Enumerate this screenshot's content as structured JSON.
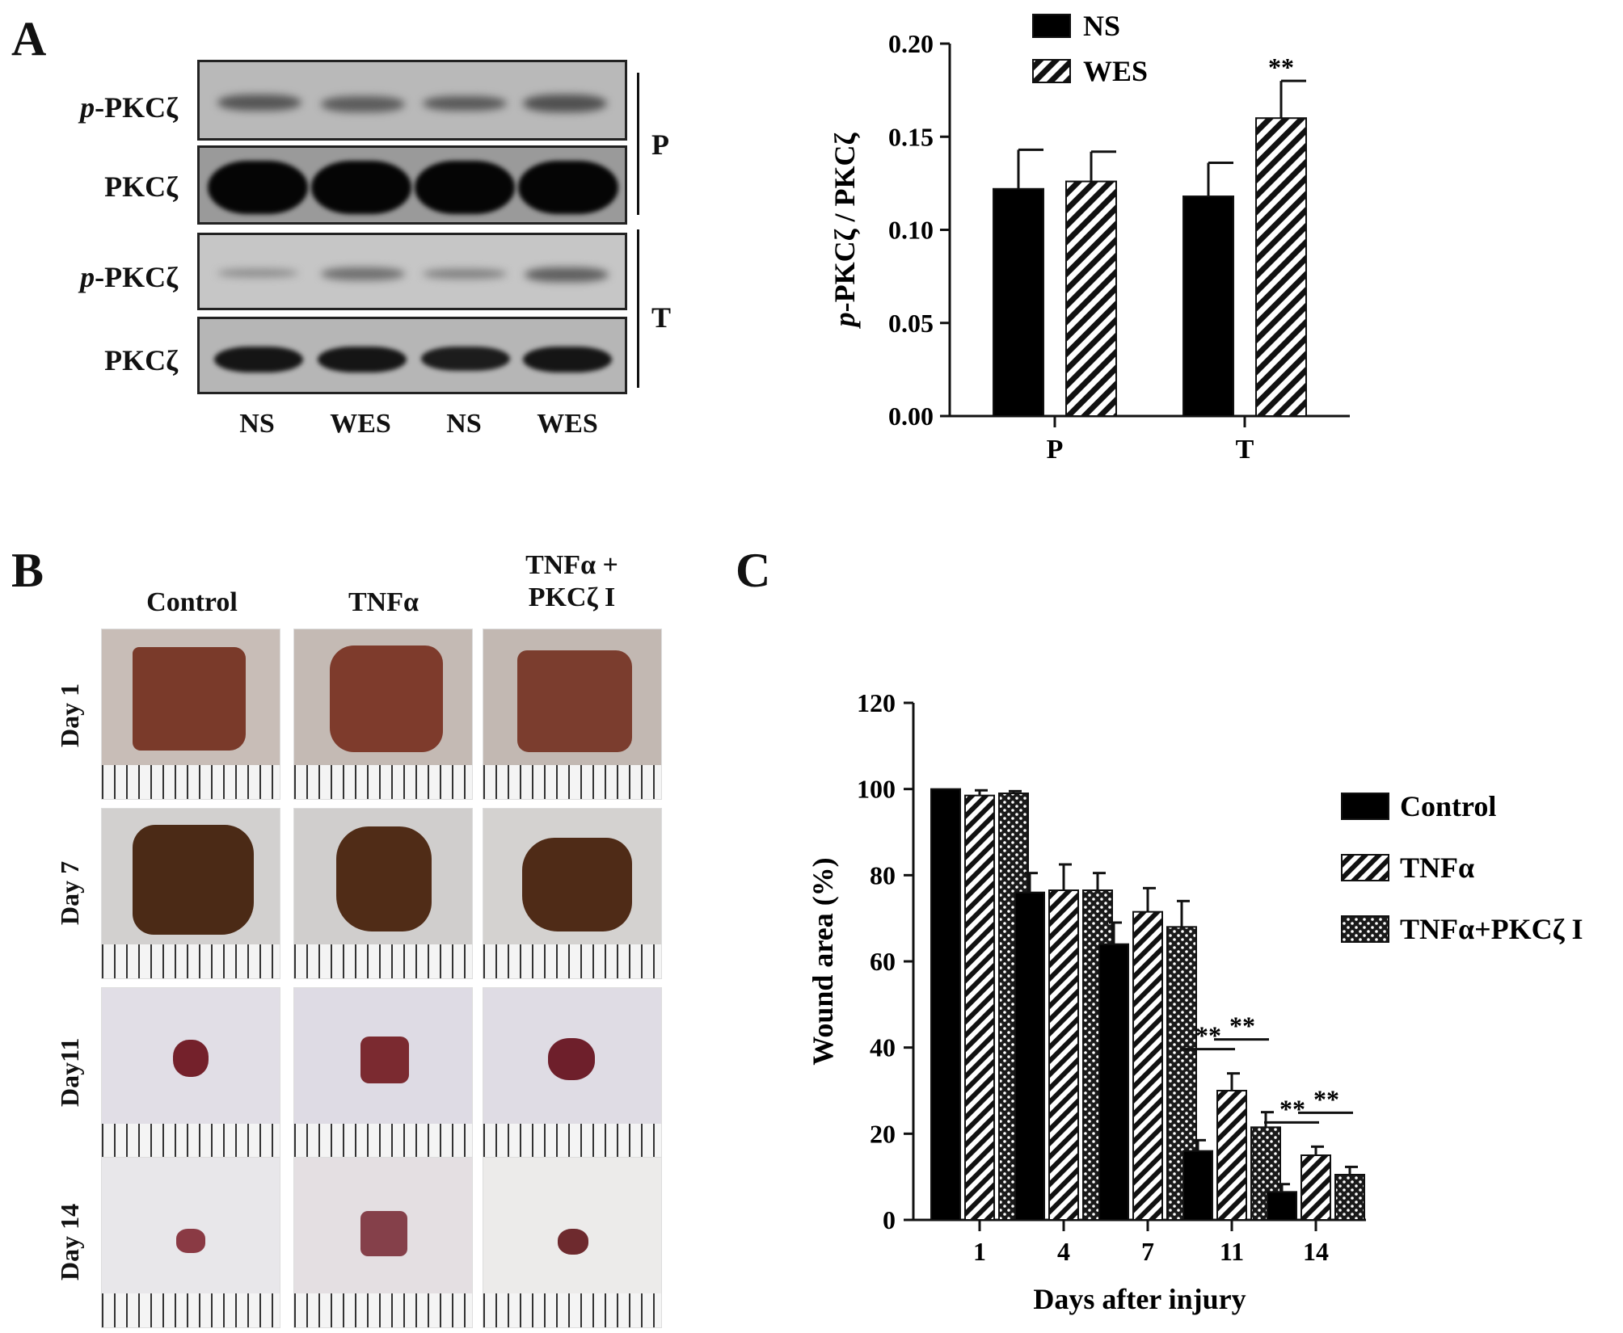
{
  "panels": {
    "A": "A",
    "B": "B",
    "C": "C"
  },
  "blot": {
    "row_labels": [
      {
        "italic": "p",
        "rest": "-PKCζ"
      },
      {
        "italic": "",
        "rest": "PKCζ"
      },
      {
        "italic": "p",
        "rest": "-PKCζ"
      },
      {
        "italic": "",
        "rest": "PKCζ"
      }
    ],
    "group_labels": [
      "P",
      "T"
    ],
    "lane_labels": [
      "NS",
      "WES",
      "NS",
      "WES"
    ]
  },
  "photos": {
    "columns": [
      "Control",
      "TNFα",
      "TNFα +\nPKCζ I"
    ],
    "rows": [
      "Day 1",
      "Day 7",
      "Day11",
      "Day 14"
    ]
  },
  "chart_data": [
    {
      "type": "bar",
      "ylabel": "p-PKCζ / PKCζ",
      "ylabel_italic_prefix": "p",
      "ylim": [
        0.0,
        0.2
      ],
      "yticks": [
        "0.00",
        "0.05",
        "0.10",
        "0.15",
        "0.20"
      ],
      "categories": [
        "P",
        "T"
      ],
      "series": [
        {
          "name": "NS",
          "values": [
            0.122,
            0.118
          ],
          "errors": [
            0.021,
            0.018
          ],
          "pattern": "solid",
          "color": "#000000"
        },
        {
          "name": "WES",
          "values": [
            0.126,
            0.16
          ],
          "errors": [
            0.016,
            0.02
          ],
          "pattern": "hatch",
          "color": "#000000"
        }
      ],
      "annotations": [
        {
          "text": "**",
          "category": "T",
          "series": "WES"
        }
      ],
      "legend": "top-left"
    },
    {
      "type": "bar",
      "xlabel": "Days  after injury",
      "ylabel": "Wound area (%)",
      "ylim": [
        0,
        120
      ],
      "yticks": [
        "0",
        "20",
        "40",
        "60",
        "80",
        "100",
        "120"
      ],
      "categories": [
        "1",
        "4",
        "7",
        "11",
        "14"
      ],
      "series": [
        {
          "name": "Control",
          "values": [
            100,
            76,
            64,
            16,
            6.5
          ],
          "errors": [
            0,
            4.5,
            5,
            2.5,
            1.8
          ],
          "pattern": "solid"
        },
        {
          "name": "TNFα",
          "values": [
            98.5,
            76.5,
            71.5,
            30,
            15
          ],
          "errors": [
            1.2,
            6,
            5.5,
            4,
            2
          ],
          "pattern": "hatch"
        },
        {
          "name": "TNFα+PKCζ I",
          "values": [
            99,
            76.5,
            68,
            21.5,
            10.5
          ],
          "errors": [
            0.5,
            4,
            6,
            3.5,
            1.8
          ],
          "pattern": "dots"
        }
      ],
      "annotations": [
        {
          "text": "**",
          "category": "11",
          "between": [
            0,
            1
          ]
        },
        {
          "text": "**",
          "category": "11",
          "between": [
            1,
            2
          ]
        },
        {
          "text": "**",
          "category": "14",
          "between": [
            0,
            1
          ]
        },
        {
          "text": "**",
          "category": "14",
          "between": [
            1,
            2
          ]
        }
      ],
      "legend": "right"
    }
  ]
}
